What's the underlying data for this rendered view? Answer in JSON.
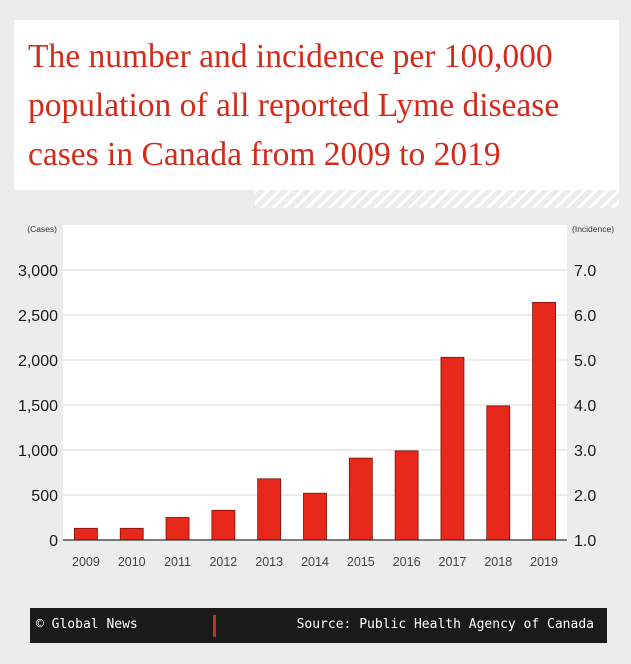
{
  "title": {
    "line1": "The number and incidence per 100,000",
    "line2": "population of all reported Lyme disease",
    "line3": "cases in Canada from 2009 to 2019"
  },
  "footer": {
    "credit": "© Global News",
    "source": "Source: Public Health Agency of Canada"
  },
  "colors": {
    "accent": "#d52a1a",
    "bar": "#e8281a",
    "plot_bg": "#ffffff",
    "grid": "#d9d9d9",
    "footer_bg": "#1a1a1a"
  },
  "chart_data": {
    "type": "bar",
    "categories": [
      "2009",
      "2010",
      "2011",
      "2012",
      "2013",
      "2014",
      "2015",
      "2016",
      "2017",
      "2018",
      "2019"
    ],
    "values": [
      130,
      130,
      250,
      330,
      680,
      520,
      910,
      990,
      2030,
      1490,
      2640
    ],
    "ylim": [
      0,
      3000
    ],
    "y_ticks": [
      "0",
      "500",
      "1,000",
      "1,500",
      "2,000",
      "2,500",
      "3,000"
    ],
    "y_tick_values": [
      0,
      500,
      1000,
      1500,
      2000,
      2500,
      3000
    ],
    "y2lim": [
      1.0,
      7.0
    ],
    "y2_ticks": [
      "1.0",
      "2.0",
      "3.0",
      "4.0",
      "5.0",
      "6.0",
      "7.0"
    ],
    "y2_tick_values": [
      1,
      2,
      3,
      4,
      5,
      6,
      7
    ],
    "ylabel": "(Cases)",
    "y2label": "(Incidence)",
    "grid": true
  }
}
